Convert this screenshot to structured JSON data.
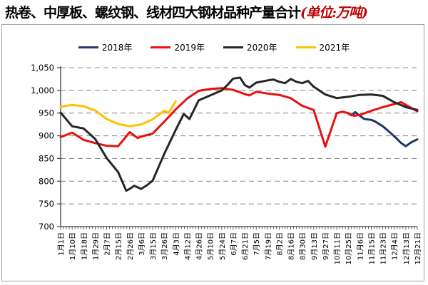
{
  "title": {
    "main": "热卷、中厚板、螺纹钢、线材四大钢材品种产量合计",
    "unit_suffix": "(单位:万吨)"
  },
  "colors": {
    "axis": "#3f3f3f",
    "gridline": "#909090",
    "box_border": "#a0a0a0",
    "title_unit": "#c00000"
  },
  "chart_data": {
    "type": "line",
    "title": "热卷、中厚板、螺纹钢、线材四大钢材品种产量合计",
    "unit": "万吨",
    "grid": "horizontal-dashed",
    "legend_position": "top",
    "categories": [
      "1月1日",
      "1月10日",
      "1月18日",
      "1月29日",
      "2月7日",
      "2月15日",
      "2月26日",
      "3月6日",
      "3月15日",
      "3月26日",
      "4月3日",
      "4月12日",
      "4月26日",
      "5月10日",
      "5月24日",
      "6月7日",
      "6月21日",
      "7月5日",
      "7月19日",
      "8月2日",
      "8月16日",
      "8月30日",
      "9月13日",
      "9月27日",
      "10月11日",
      "10月25日",
      "11月6日",
      "11月15日",
      "11月23日",
      "12月4日",
      "12月13日",
      "12月21日"
    ],
    "y_axis": {
      "min": 700,
      "max": 1050,
      "step": 50,
      "tick_labels": [
        "700",
        "750",
        "800",
        "850",
        "900",
        "950",
        "1,000",
        "1,050"
      ]
    },
    "series": [
      {
        "name": "2018年",
        "color": "#1f3864",
        "x": [
          25,
          25.3,
          25.6,
          26,
          26.4,
          27,
          27.3,
          28,
          28.6,
          29,
          29.6,
          30,
          30.5,
          31
        ],
        "values": [
          949,
          945,
          952,
          944,
          937,
          935,
          932,
          921,
          908,
          899,
          884,
          877,
          886,
          892
        ]
      },
      {
        "name": "2019年",
        "color": "#e8100c",
        "x": [
          0,
          1,
          2,
          3,
          4,
          5,
          6,
          6.7,
          7,
          8,
          9,
          10,
          11,
          12,
          13,
          14,
          15,
          16,
          16.4,
          17,
          18,
          19,
          20,
          21,
          22,
          23,
          24,
          24.5,
          25,
          25.5,
          26,
          27,
          28,
          29,
          29.6,
          30,
          31
        ],
        "values": [
          897,
          907,
          891,
          884,
          878,
          877,
          908,
          895,
          898,
          905,
          931,
          958,
          982,
          999,
          1003,
          1005,
          1001,
          992,
          989,
          997,
          993,
          990,
          983,
          966,
          957,
          876,
          950,
          953,
          950,
          944,
          946,
          955,
          963,
          970,
          974,
          968,
          954
        ]
      },
      {
        "name": "2020年",
        "color": "#262626",
        "x": [
          0,
          1,
          2,
          3,
          4,
          5,
          5.7,
          6,
          6.4,
          7,
          7.5,
          8,
          9,
          10,
          10.7,
          11.2,
          12,
          13,
          14,
          14.5,
          15,
          15.6,
          16,
          16.4,
          17,
          18,
          18.5,
          19,
          19.5,
          20,
          20.5,
          21,
          21.5,
          22,
          23,
          24,
          25,
          26,
          27,
          28,
          29,
          30,
          31
        ],
        "values": [
          951,
          921,
          916,
          893,
          851,
          820,
          779,
          783,
          790,
          783,
          791,
          801,
          860,
          913,
          948,
          937,
          978,
          989,
          1000,
          1012,
          1026,
          1028,
          1012,
          1006,
          1017,
          1022,
          1024,
          1019,
          1016,
          1025,
          1019,
          1016,
          1021,
          1008,
          991,
          983,
          986,
          990,
          991,
          988,
          974,
          963,
          957
        ]
      },
      {
        "name": "2021年",
        "color": "#ffc000",
        "x": [
          0,
          1,
          2,
          3,
          4,
          5,
          6,
          7,
          8,
          9,
          9.4,
          10
        ],
        "values": [
          964,
          968,
          965,
          956,
          937,
          926,
          921,
          925,
          936,
          955,
          951,
          976
        ]
      }
    ]
  }
}
